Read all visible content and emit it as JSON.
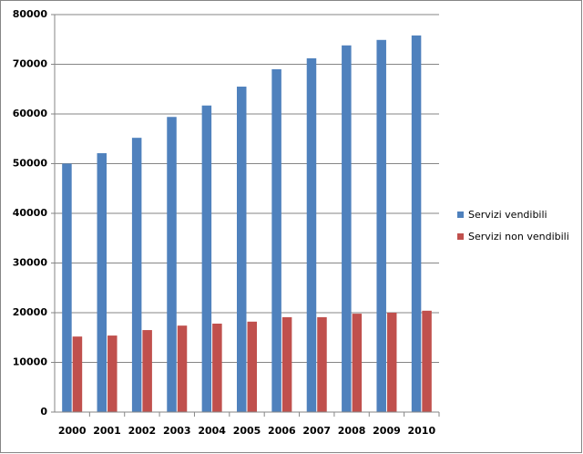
{
  "chart_data": {
    "type": "bar",
    "categories": [
      "2000",
      "2001",
      "2002",
      "2003",
      "2004",
      "2005",
      "2006",
      "2007",
      "2008",
      "2009",
      "2010"
    ],
    "series": [
      {
        "name": "Servizi vendibili",
        "color": "#4f81bd",
        "values": [
          50000,
          52100,
          55200,
          59400,
          61700,
          65500,
          69000,
          71200,
          73800,
          74900,
          75800
        ]
      },
      {
        "name": "Servizi non vendibili",
        "color": "#c0504d",
        "values": [
          15200,
          15400,
          16500,
          17400,
          17800,
          18200,
          19100,
          19100,
          19800,
          20000,
          20400
        ]
      }
    ],
    "ylim": [
      0,
      80000
    ],
    "yticks": [
      0,
      10000,
      20000,
      30000,
      40000,
      50000,
      60000,
      70000,
      80000
    ],
    "grid": true,
    "legend": "right"
  }
}
